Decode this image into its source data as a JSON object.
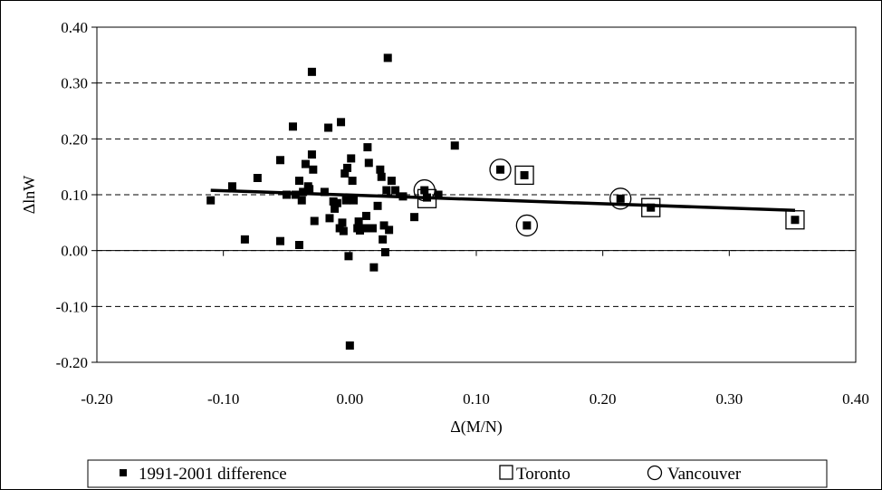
{
  "chart_data": {
    "type": "scatter",
    "title": "",
    "xlabel": "Δ(M/N)",
    "ylabel": "ΔlnW",
    "xlim": [
      -0.2,
      0.4
    ],
    "ylim": [
      -0.2,
      0.4
    ],
    "x_ticks": [
      "-0.20",
      "-0.10",
      "0.00",
      "0.10",
      "0.20",
      "0.30",
      "0.40"
    ],
    "y_ticks": [
      "0.40",
      "0.30",
      "0.20",
      "0.10",
      "0.00",
      "-0.10",
      "-0.20"
    ],
    "grid": "horizontal dashed",
    "legend_position": "bottom",
    "series": [
      {
        "name": "1991-2001 difference",
        "marker": "filled-square",
        "color": "#000000",
        "points": [
          [
            -0.11,
            0.09
          ],
          [
            -0.093,
            0.115
          ],
          [
            -0.083,
            0.02
          ],
          [
            -0.073,
            0.13
          ],
          [
            -0.055,
            0.162
          ],
          [
            -0.055,
            0.017
          ],
          [
            -0.05,
            0.1
          ],
          [
            -0.045,
            0.222
          ],
          [
            -0.043,
            0.1
          ],
          [
            -0.04,
            0.125
          ],
          [
            -0.04,
            0.01
          ],
          [
            -0.038,
            0.09
          ],
          [
            -0.037,
            0.105
          ],
          [
            -0.035,
            0.155
          ],
          [
            -0.033,
            0.115
          ],
          [
            -0.032,
            0.11
          ],
          [
            -0.03,
            0.32
          ],
          [
            -0.03,
            0.172
          ],
          [
            -0.029,
            0.145
          ],
          [
            -0.028,
            0.053
          ],
          [
            -0.02,
            0.105
          ],
          [
            -0.017,
            0.22
          ],
          [
            -0.016,
            0.058
          ],
          [
            -0.013,
            0.088
          ],
          [
            -0.012,
            0.075
          ],
          [
            -0.01,
            0.085
          ],
          [
            -0.008,
            0.04
          ],
          [
            -0.007,
            0.23
          ],
          [
            -0.006,
            0.05
          ],
          [
            -0.005,
            0.035
          ],
          [
            -0.004,
            0.138
          ],
          [
            -0.003,
            0.09
          ],
          [
            -0.002,
            0.148
          ],
          [
            -0.001,
            -0.01
          ],
          [
            0.0,
            -0.17
          ],
          [
            0.001,
            0.165
          ],
          [
            0.002,
            0.125
          ],
          [
            0.003,
            0.09
          ],
          [
            0.006,
            0.04
          ],
          [
            0.007,
            0.052
          ],
          [
            0.008,
            0.036
          ],
          [
            0.012,
            0.04
          ],
          [
            0.013,
            0.062
          ],
          [
            0.014,
            0.185
          ],
          [
            0.015,
            0.157
          ],
          [
            0.018,
            0.04
          ],
          [
            0.019,
            -0.03
          ],
          [
            0.022,
            0.08
          ],
          [
            0.024,
            0.145
          ],
          [
            0.025,
            0.132
          ],
          [
            0.026,
            0.02
          ],
          [
            0.027,
            0.045
          ],
          [
            0.028,
            -0.003
          ],
          [
            0.029,
            0.108
          ],
          [
            0.03,
            0.345
          ],
          [
            0.031,
            0.037
          ],
          [
            0.033,
            0.125
          ],
          [
            0.036,
            0.108
          ],
          [
            0.042,
            0.097
          ],
          [
            0.051,
            0.06
          ],
          [
            0.059,
            0.108
          ],
          [
            0.061,
            0.095
          ],
          [
            0.07,
            0.1
          ],
          [
            0.083,
            0.188
          ],
          [
            0.119,
            0.145
          ],
          [
            0.138,
            0.135
          ],
          [
            0.14,
            0.045
          ],
          [
            0.214,
            0.093
          ],
          [
            0.238,
            0.077
          ],
          [
            0.352,
            0.055
          ]
        ]
      },
      {
        "name": "Toronto",
        "marker": "open-square",
        "color": "#000000",
        "points": [
          [
            0.061,
            0.093
          ],
          [
            0.138,
            0.135
          ],
          [
            0.238,
            0.077
          ],
          [
            0.352,
            0.055
          ]
        ]
      },
      {
        "name": "Vancouver",
        "marker": "open-circle",
        "color": "#000000",
        "points": [
          [
            0.059,
            0.108
          ],
          [
            0.119,
            0.145
          ],
          [
            0.14,
            0.045
          ],
          [
            0.214,
            0.093
          ]
        ]
      }
    ],
    "trendline": {
      "type": "linear",
      "x": [
        -0.11,
        0.352
      ],
      "y": [
        0.108,
        0.072
      ]
    }
  }
}
